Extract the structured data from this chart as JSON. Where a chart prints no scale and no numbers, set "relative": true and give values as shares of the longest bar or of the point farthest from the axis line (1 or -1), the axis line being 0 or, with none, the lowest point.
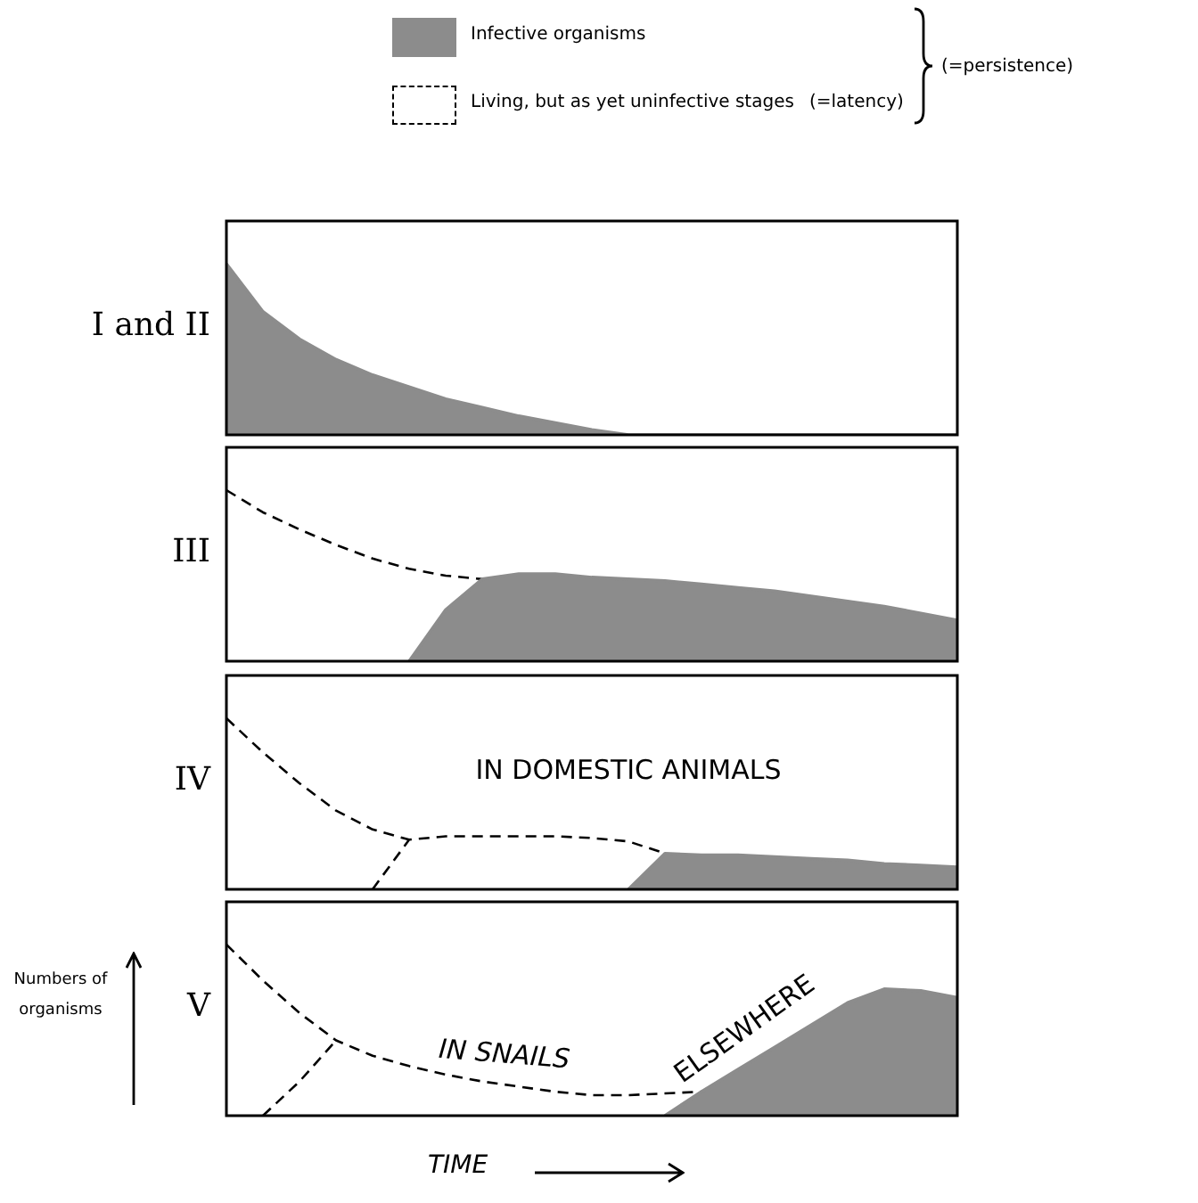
{
  "chart_data": [
    {
      "type": "area",
      "title": "I and II",
      "relative": true,
      "categories": [
        null,
        null,
        null,
        null,
        null,
        null,
        null,
        null,
        null,
        null,
        null,
        null,
        null,
        null,
        null,
        null,
        null,
        null,
        null,
        null,
        null
      ],
      "series": [
        {
          "type": "area",
          "color": "#8c8c8c",
          "values": [
            1,
            0.72,
            0.56,
            0.44,
            0.35,
            0.28,
            0.21,
            0.16,
            0.11,
            0.07,
            0.03,
            0,
            0,
            0,
            0,
            0,
            0,
            0,
            0,
            0,
            0
          ]
        }
      ]
    },
    {
      "type": "area",
      "title": "III",
      "relative": true,
      "legend": "top",
      "annotations": [
        "(=latency)",
        "(=persistence)"
      ],
      "categories": [
        null,
        null,
        null,
        null,
        null,
        null,
        null,
        null,
        null,
        null,
        null,
        null,
        null,
        null,
        null,
        null,
        null,
        null,
        null,
        null,
        null
      ],
      "series": [
        {
          "name": "Infective organisms",
          "type": "area",
          "color": "#8c8c8c",
          "values": [
            null,
            null,
            null,
            null,
            null,
            0,
            0.3,
            0.48,
            0.51,
            0.51,
            0.49,
            0.48,
            0.47,
            0.45,
            0.43,
            0.41,
            0.38,
            0.35,
            0.32,
            0.28,
            0.24
          ]
        },
        {
          "name": "Living, but as yet uninfective stages",
          "type": "line",
          "line_style": "dashed",
          "color": "#000000",
          "values": [
            1,
            0.87,
            0.77,
            0.68,
            0.6,
            0.54,
            0.5,
            0.48,
            null,
            null,
            null,
            null,
            null,
            null,
            null,
            null,
            null,
            null,
            null,
            null,
            null
          ]
        }
      ]
    },
    {
      "type": "area",
      "title": "IV",
      "relative": true,
      "annotations": [
        "IN DOMESTIC ANIMALS"
      ],
      "categories": [
        null,
        null,
        null,
        null,
        null,
        null,
        null,
        null,
        null,
        null,
        null,
        null,
        null,
        null,
        null,
        null,
        null,
        null,
        null,
        null,
        null
      ],
      "series": [
        {
          "type": "area",
          "color": "#8c8c8c",
          "values": [
            null,
            null,
            null,
            null,
            null,
            null,
            null,
            null,
            null,
            null,
            null,
            0,
            0.21,
            0.2,
            0.2,
            0.19,
            0.18,
            0.17,
            0.15,
            0.14,
            0.13
          ]
        },
        {
          "type": "line",
          "line_style": "dashed",
          "color": "#000000",
          "values": [
            1,
            0.8,
            0.62,
            0.46,
            0.35,
            0.29,
            null,
            null,
            null,
            null,
            null,
            null,
            null,
            null,
            null,
            null,
            null,
            null,
            null,
            null,
            null
          ]
        },
        {
          "type": "line",
          "line_style": "dashed",
          "color": "#000000",
          "values": [
            null,
            null,
            null,
            null,
            0,
            0.29,
            0.31,
            0.31,
            0.31,
            0.31,
            0.3,
            0.28,
            0.21,
            null,
            null,
            null,
            null,
            null,
            null,
            null,
            null
          ]
        }
      ]
    },
    {
      "type": "area",
      "title": "V",
      "ylabel": "Numbers of organisms",
      "xlabel": "TIME",
      "relative": true,
      "annotations": [
        "IN SNAILS",
        "ELSEWHERE"
      ],
      "categories": [
        null,
        null,
        null,
        null,
        null,
        null,
        null,
        null,
        null,
        null,
        null,
        null,
        null,
        null,
        null,
        null,
        null,
        null,
        null,
        null,
        null
      ],
      "series": [
        {
          "type": "area",
          "color": "#8c8c8c",
          "values": [
            null,
            null,
            null,
            null,
            null,
            null,
            null,
            null,
            null,
            null,
            null,
            null,
            0,
            0.14,
            0.27,
            0.4,
            0.53,
            0.66,
            0.74,
            0.73,
            0.69
          ]
        },
        {
          "type": "line",
          "line_style": "dashed",
          "color": "#000000",
          "values": [
            1,
            0.79,
            0.6,
            0.44,
            0.35,
            0.29,
            0.24,
            0.2,
            0.17,
            0.14,
            0.12,
            0.12,
            0.13,
            0.14,
            null,
            null,
            null,
            null,
            null,
            null,
            null
          ]
        },
        {
          "type": "line",
          "line_style": "dashed",
          "color": "#000000",
          "values": [
            null,
            0,
            0.2,
            0.44,
            null,
            null,
            null,
            null,
            null,
            null,
            null,
            null,
            null,
            null,
            null,
            null,
            null,
            null,
            null,
            null,
            null
          ]
        }
      ]
    }
  ]
}
